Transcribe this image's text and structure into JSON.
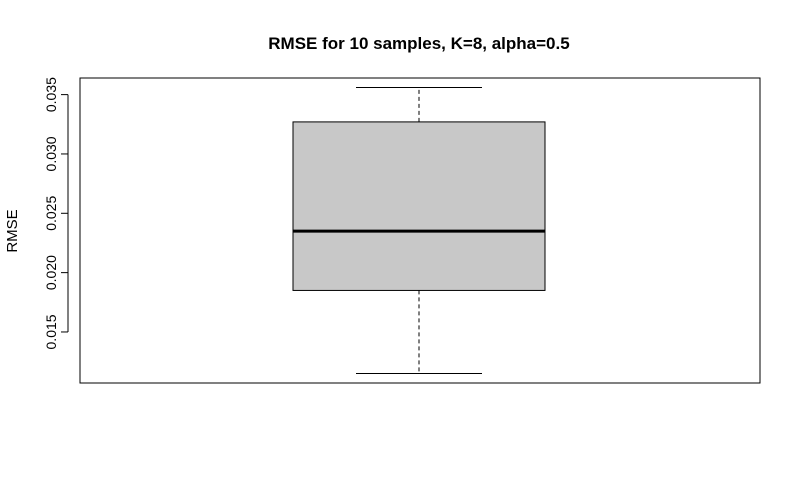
{
  "chart_data": {
    "type": "boxplot",
    "title": "RMSE for 10 samples, K=8, alpha=0.5",
    "xlabel": "",
    "ylabel": "RMSE",
    "ylim": [
      0.0107,
      0.0364
    ],
    "yticks": [
      0.015,
      0.02,
      0.025,
      0.03,
      0.035
    ],
    "ytick_labels": [
      "0.015",
      "0.020",
      "0.025",
      "0.030",
      "0.035"
    ],
    "grid": false,
    "box": {
      "whisker_low": 0.0115,
      "q1": 0.0185,
      "median": 0.0235,
      "q3": 0.0327,
      "whisker_high": 0.0356
    },
    "colors": {
      "box_fill": "#c8c8c8",
      "stroke": "#000000"
    }
  }
}
